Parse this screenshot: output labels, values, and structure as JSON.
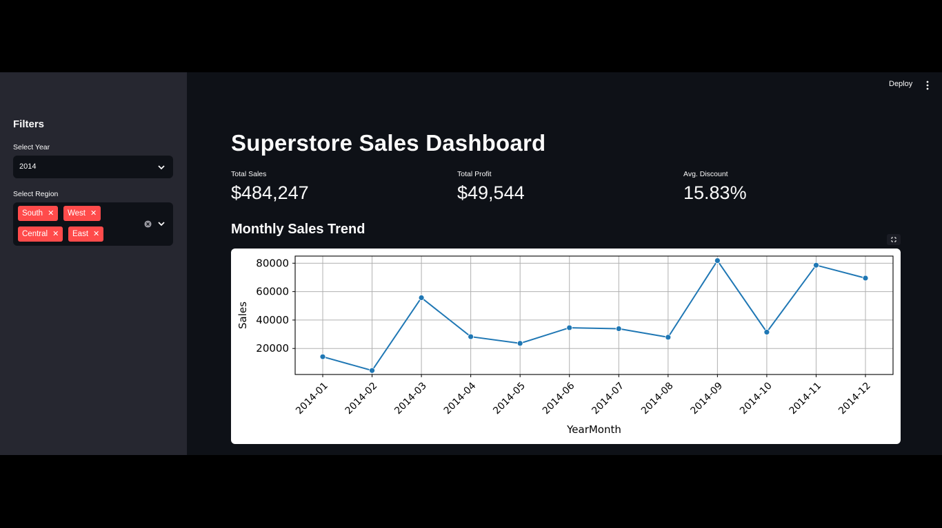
{
  "sidebar": {
    "title": "Filters",
    "year_label": "Select Year",
    "year_value": "2014",
    "region_label": "Select Region",
    "regions": [
      "South",
      "West",
      "Central",
      "East"
    ]
  },
  "header": {
    "deploy_label": "Deploy"
  },
  "main": {
    "title": "Superstore Sales Dashboard",
    "metrics": [
      {
        "label": "Total Sales",
        "value": "$484,247"
      },
      {
        "label": "Total Profit",
        "value": "$49,544"
      },
      {
        "label": "Avg. Discount",
        "value": "15.83%"
      }
    ],
    "chart_title": "Monthly Sales Trend"
  },
  "colors": {
    "accent": "#ff4b4b",
    "line": "#1f77b4",
    "sidebar": "#262730",
    "background": "#0e1117"
  },
  "chart_data": {
    "type": "line",
    "categories": [
      "2014-01",
      "2014-02",
      "2014-03",
      "2014-04",
      "2014-05",
      "2014-06",
      "2014-07",
      "2014-08",
      "2014-09",
      "2014-10",
      "2014-11",
      "2014-12"
    ],
    "values": [
      14200,
      4500,
      55700,
      28300,
      23600,
      34600,
      33900,
      27900,
      81800,
      31500,
      78600,
      69500
    ],
    "xlabel": "YearMonth",
    "ylabel": "Sales",
    "yticks": [
      20000,
      40000,
      60000,
      80000
    ],
    "ylim": [
      1700,
      85000
    ],
    "grid": true,
    "marker": "circle"
  }
}
